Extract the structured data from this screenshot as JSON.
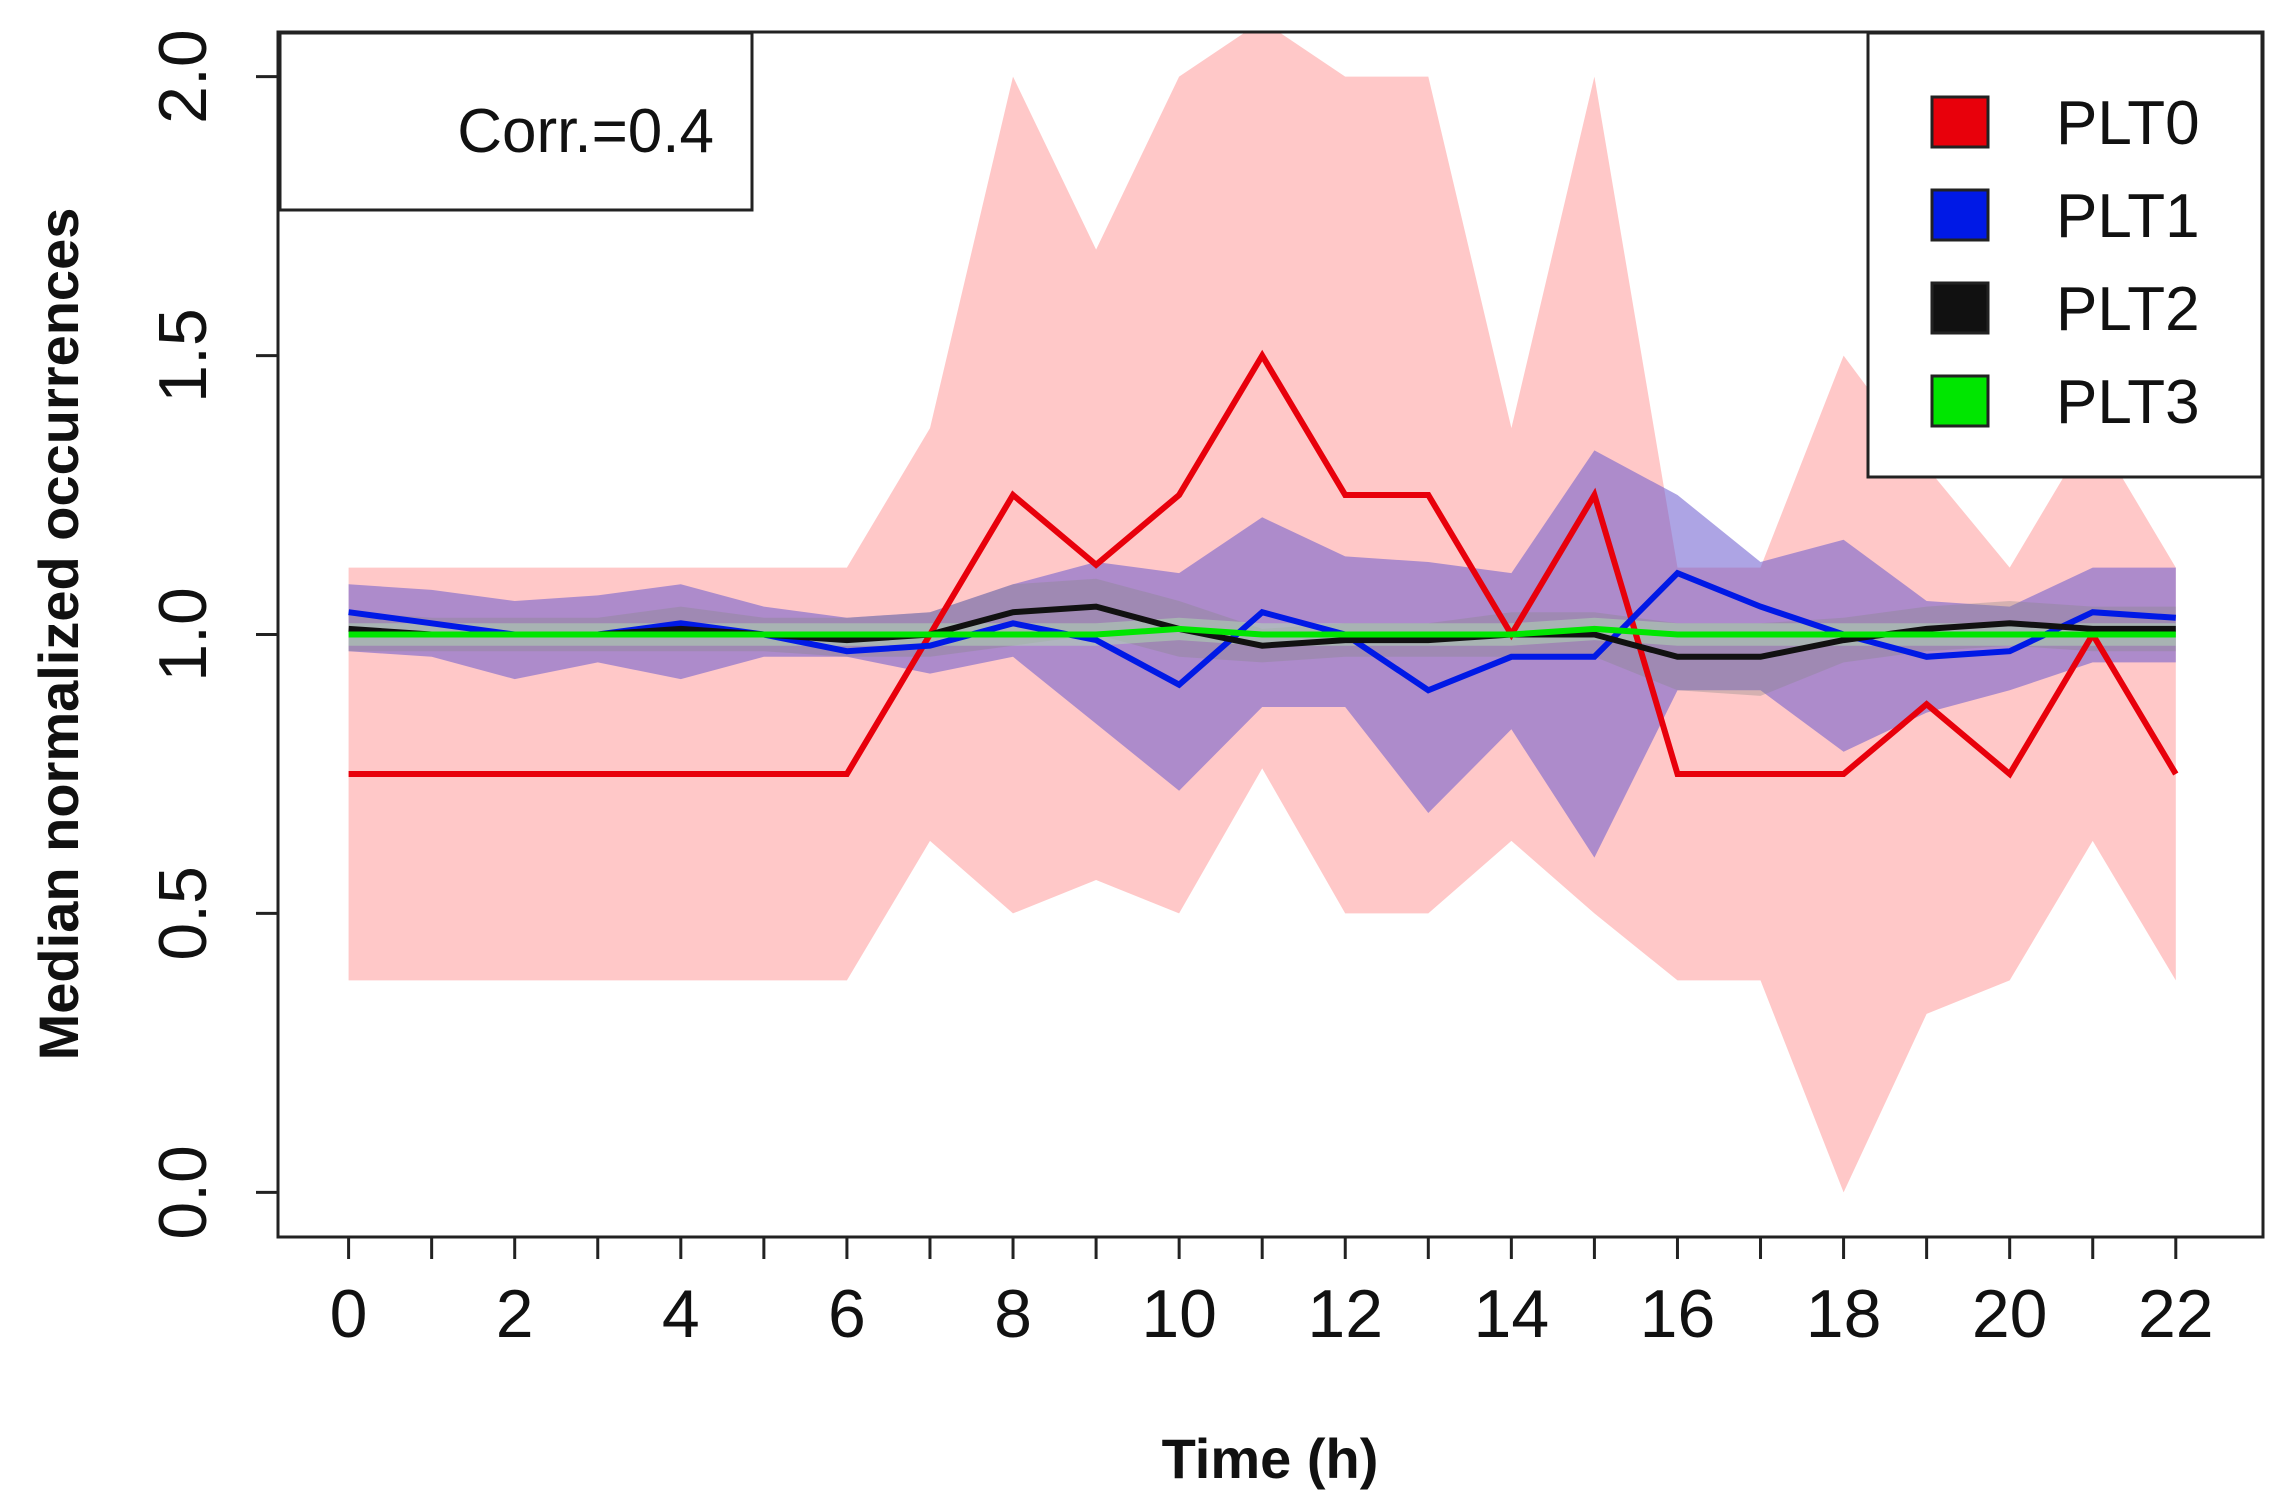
{
  "chart_data": {
    "type": "line",
    "title": "",
    "xlabel": "Time (h)",
    "ylabel": "Median normalized occurrences",
    "xlim": [
      -0.85,
      23.05
    ],
    "ylim": [
      -0.08,
      2.08
    ],
    "x_ticks": [
      0,
      2,
      4,
      6,
      8,
      10,
      12,
      14,
      16,
      18,
      20,
      22
    ],
    "x_tick_labels": [
      "0",
      "2",
      "4",
      "6",
      "8",
      "10",
      "12",
      "14",
      "16",
      "18",
      "20",
      "22"
    ],
    "x_minor_ticks": [
      1,
      3,
      5,
      7,
      9,
      11,
      13,
      15,
      17,
      19,
      21
    ],
    "y_ticks": [
      0.0,
      0.5,
      1.0,
      1.5,
      2.0
    ],
    "y_tick_labels": [
      "0.0",
      "0.5",
      "1.0",
      "1.5",
      "2.0"
    ],
    "grid": false,
    "legend_position": "top-right",
    "annotation": {
      "text": "Corr.=0.4",
      "position": "top-left"
    },
    "x": [
      0,
      1,
      2,
      3,
      4,
      5,
      6,
      7,
      8,
      9,
      10,
      11,
      12,
      13,
      14,
      15,
      16,
      17,
      18,
      19,
      20,
      21,
      22
    ],
    "series": [
      {
        "name": "PLT0",
        "color": "#e8000b",
        "band_color": "#ffc8c8",
        "band_opacity": 1.0,
        "values": [
          0.75,
          0.75,
          0.75,
          0.75,
          0.75,
          0.75,
          0.75,
          1.0,
          1.25,
          1.125,
          1.25,
          1.5,
          1.25,
          1.25,
          1.0,
          1.25,
          0.75,
          0.75,
          0.75,
          0.875,
          0.75,
          1.0,
          0.75
        ],
        "lower": [
          0.38,
          0.38,
          0.38,
          0.38,
          0.38,
          0.38,
          0.38,
          0.63,
          0.5,
          0.56,
          0.5,
          0.76,
          0.5,
          0.5,
          0.63,
          0.5,
          0.38,
          0.38,
          0.0,
          0.32,
          0.38,
          0.63,
          0.38
        ],
        "upper": [
          1.12,
          1.12,
          1.12,
          1.12,
          1.12,
          1.12,
          1.12,
          1.37,
          2.0,
          1.69,
          2.0,
          2.1,
          2.0,
          2.0,
          1.37,
          2.0,
          1.12,
          1.12,
          1.5,
          1.3,
          1.12,
          1.37,
          1.12
        ]
      },
      {
        "name": "PLT1",
        "color": "#0019e6",
        "band_color": "#6a5acd",
        "band_opacity": 0.55,
        "values": [
          1.04,
          1.02,
          1.0,
          1.0,
          1.02,
          1.0,
          0.97,
          0.98,
          1.02,
          0.99,
          0.91,
          1.04,
          1.0,
          0.9,
          0.96,
          0.96,
          1.11,
          1.05,
          1.0,
          0.96,
          0.97,
          1.04,
          1.03
        ],
        "lower": [
          0.97,
          0.96,
          0.92,
          0.95,
          0.92,
          0.96,
          0.96,
          0.93,
          0.96,
          0.84,
          0.72,
          0.87,
          0.87,
          0.68,
          0.83,
          0.6,
          0.9,
          0.9,
          0.79,
          0.86,
          0.9,
          0.95,
          0.95
        ],
        "upper": [
          1.09,
          1.08,
          1.06,
          1.07,
          1.09,
          1.05,
          1.03,
          1.04,
          1.09,
          1.13,
          1.11,
          1.21,
          1.14,
          1.13,
          1.11,
          1.33,
          1.25,
          1.13,
          1.17,
          1.06,
          1.05,
          1.12,
          1.12
        ]
      },
      {
        "name": "PLT2",
        "color": "#111111",
        "band_color": "#888888",
        "band_opacity": 0.35,
        "values": [
          1.01,
          1.0,
          1.0,
          1.0,
          1.01,
          1.0,
          0.99,
          1.0,
          1.04,
          1.05,
          1.01,
          0.98,
          0.99,
          0.99,
          1.0,
          1.0,
          0.96,
          0.96,
          0.99,
          1.01,
          1.02,
          1.01,
          1.01
        ],
        "lower": [
          0.97,
          0.97,
          0.97,
          0.97,
          0.97,
          0.97,
          0.96,
          0.96,
          0.98,
          1.0,
          0.96,
          0.95,
          0.96,
          0.96,
          0.96,
          0.96,
          0.9,
          0.89,
          0.95,
          0.97,
          0.98,
          0.97,
          0.97
        ],
        "upper": [
          1.04,
          1.03,
          1.03,
          1.03,
          1.05,
          1.03,
          1.03,
          1.04,
          1.09,
          1.1,
          1.06,
          1.01,
          1.02,
          1.02,
          1.04,
          1.04,
          1.02,
          1.02,
          1.03,
          1.05,
          1.06,
          1.05,
          1.05
        ]
      },
      {
        "name": "PLT3",
        "color": "#00e600",
        "band_color": "#b4e6b4",
        "band_opacity": 0.45,
        "values": [
          1.0,
          1.0,
          1.0,
          1.0,
          1.0,
          1.0,
          1.0,
          1.0,
          1.0,
          1.0,
          1.01,
          1.0,
          1.0,
          1.0,
          1.0,
          1.01,
          1.0,
          1.0,
          1.0,
          1.0,
          1.0,
          1.0,
          1.0
        ],
        "lower": [
          0.98,
          0.98,
          0.98,
          0.98,
          0.98,
          0.98,
          0.98,
          0.98,
          0.98,
          0.98,
          0.99,
          0.98,
          0.98,
          0.98,
          0.98,
          0.99,
          0.98,
          0.98,
          0.98,
          0.98,
          0.98,
          0.98,
          0.98
        ],
        "upper": [
          1.02,
          1.02,
          1.02,
          1.02,
          1.02,
          1.02,
          1.02,
          1.02,
          1.02,
          1.02,
          1.03,
          1.02,
          1.02,
          1.02,
          1.02,
          1.03,
          1.02,
          1.02,
          1.02,
          1.02,
          1.02,
          1.02,
          1.02
        ]
      }
    ]
  }
}
